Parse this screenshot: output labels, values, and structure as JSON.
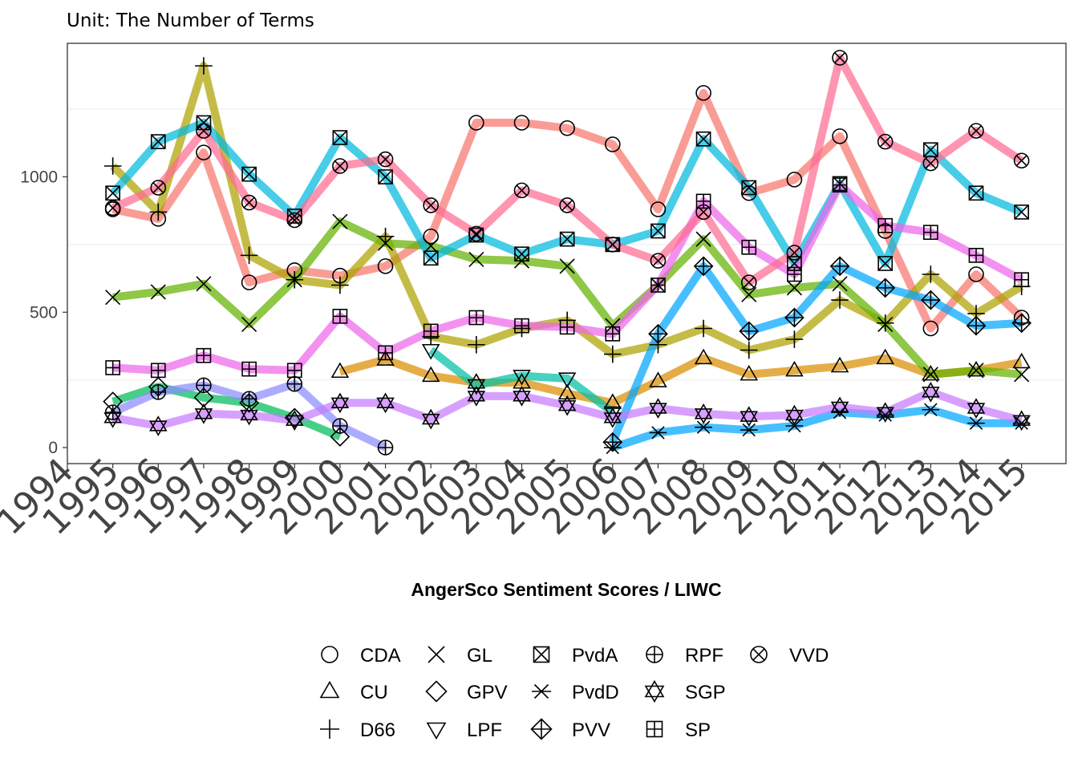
{
  "chart_data": {
    "type": "line",
    "title": "",
    "subtitle": "Unit: The Number of Terms",
    "xlabel": "AngerSco Sentiment Scores / LIWC",
    "ylabel": "",
    "xlim": [
      1994,
      2015
    ],
    "ylim": [
      -60,
      1480
    ],
    "x_ticks": [
      1994,
      1995,
      1996,
      1997,
      1998,
      1999,
      2000,
      2001,
      2002,
      2003,
      2004,
      2005,
      2006,
      2007,
      2008,
      2009,
      2010,
      2011,
      2012,
      2013,
      2014,
      2015
    ],
    "y_ticks": [
      0,
      500,
      1000
    ],
    "grid": true,
    "legend_position": "bottom",
    "series": [
      {
        "name": "CDA",
        "shape": "circle",
        "color": "#F8766D",
        "points": [
          [
            1995,
            880
          ],
          [
            1996,
            845
          ],
          [
            1997,
            1090
          ],
          [
            1998,
            610
          ],
          [
            1999,
            655
          ],
          [
            2000,
            635
          ],
          [
            2001,
            670
          ],
          [
            2002,
            780
          ],
          [
            2003,
            1200
          ],
          [
            2004,
            1200
          ],
          [
            2005,
            1180
          ],
          [
            2006,
            1120
          ],
          [
            2007,
            880
          ],
          [
            2008,
            1310
          ],
          [
            2009,
            940
          ],
          [
            2010,
            990
          ],
          [
            2011,
            1150
          ],
          [
            2012,
            800
          ],
          [
            2013,
            440
          ],
          [
            2014,
            640
          ],
          [
            2015,
            480
          ]
        ]
      },
      {
        "name": "CU",
        "shape": "triangle-up",
        "color": "#DB8E00",
        "points": [
          [
            2000,
            280
          ],
          [
            2001,
            325
          ],
          [
            2002,
            265
          ],
          [
            2003,
            240
          ],
          [
            2004,
            240
          ],
          [
            2005,
            200
          ],
          [
            2006,
            165
          ],
          [
            2007,
            245
          ],
          [
            2008,
            330
          ],
          [
            2009,
            270
          ],
          [
            2010,
            285
          ],
          [
            2011,
            300
          ],
          [
            2012,
            330
          ],
          [
            2013,
            270
          ],
          [
            2014,
            285
          ],
          [
            2015,
            315
          ]
        ]
      },
      {
        "name": "D66",
        "shape": "plus",
        "color": "#AEA200",
        "points": [
          [
            1995,
            1040
          ],
          [
            1996,
            870
          ],
          [
            1997,
            1410
          ],
          [
            1998,
            710
          ],
          [
            1999,
            620
          ],
          [
            2000,
            600
          ],
          [
            2001,
            780
          ],
          [
            2002,
            410
          ],
          [
            2003,
            380
          ],
          [
            2004,
            440
          ],
          [
            2005,
            470
          ],
          [
            2006,
            345
          ],
          [
            2007,
            380
          ],
          [
            2008,
            440
          ],
          [
            2009,
            360
          ],
          [
            2010,
            400
          ],
          [
            2011,
            545
          ],
          [
            2012,
            460
          ],
          [
            2013,
            640
          ],
          [
            2014,
            495
          ],
          [
            2015,
            595
          ]
        ]
      },
      {
        "name": "GL",
        "shape": "cross",
        "color": "#64B200",
        "points": [
          [
            1995,
            555
          ],
          [
            1996,
            575
          ],
          [
            1997,
            605
          ],
          [
            1998,
            455
          ],
          [
            1999,
            620
          ],
          [
            2000,
            835
          ],
          [
            2001,
            755
          ],
          [
            2002,
            745
          ],
          [
            2003,
            695
          ],
          [
            2004,
            690
          ],
          [
            2005,
            670
          ],
          [
            2006,
            450
          ],
          [
            2007,
            600
          ],
          [
            2008,
            770
          ],
          [
            2009,
            565
          ],
          [
            2010,
            590
          ],
          [
            2011,
            605
          ],
          [
            2012,
            455
          ],
          [
            2013,
            270
          ],
          [
            2014,
            285
          ],
          [
            2015,
            270
          ]
        ]
      },
      {
        "name": "GPV",
        "shape": "diamond",
        "color": "#00BD5C",
        "points": [
          [
            1995,
            170
          ],
          [
            1996,
            225
          ],
          [
            1997,
            185
          ],
          [
            1998,
            165
          ],
          [
            1999,
            110
          ],
          [
            2000,
            40
          ]
        ]
      },
      {
        "name": "LPF",
        "shape": "triangle-down",
        "color": "#00C1A7",
        "points": [
          [
            2002,
            360
          ],
          [
            2003,
            230
          ],
          [
            2004,
            265
          ],
          [
            2005,
            255
          ],
          [
            2006,
            130
          ]
        ]
      },
      {
        "name": "PvdA",
        "shape": "square-x",
        "color": "#00BADE",
        "points": [
          [
            1995,
            940
          ],
          [
            1996,
            1130
          ],
          [
            1997,
            1200
          ],
          [
            1998,
            1010
          ],
          [
            1999,
            855
          ],
          [
            2000,
            1145
          ],
          [
            2001,
            1000
          ],
          [
            2002,
            700
          ],
          [
            2003,
            785
          ],
          [
            2004,
            715
          ],
          [
            2005,
            770
          ],
          [
            2006,
            750
          ],
          [
            2007,
            800
          ],
          [
            2008,
            1140
          ],
          [
            2009,
            960
          ],
          [
            2010,
            680
          ],
          [
            2011,
            975
          ],
          [
            2012,
            680
          ],
          [
            2013,
            1100
          ],
          [
            2014,
            940
          ],
          [
            2015,
            870
          ]
        ]
      },
      {
        "name": "PvdD",
        "shape": "asterisk",
        "color": "#00A6FF",
        "points": [
          [
            2006,
            0
          ],
          [
            2007,
            55
          ],
          [
            2008,
            75
          ],
          [
            2009,
            65
          ],
          [
            2010,
            80
          ],
          [
            2011,
            130
          ],
          [
            2012,
            120
          ],
          [
            2013,
            140
          ],
          [
            2014,
            90
          ],
          [
            2015,
            90
          ]
        ]
      },
      {
        "name": "PVV",
        "shape": "diamond-plus",
        "color": "#00A6FF",
        "points": [
          [
            2006,
            20
          ],
          [
            2007,
            420
          ],
          [
            2008,
            670
          ],
          [
            2009,
            430
          ],
          [
            2010,
            480
          ],
          [
            2011,
            670
          ],
          [
            2012,
            590
          ],
          [
            2013,
            545
          ],
          [
            2014,
            450
          ],
          [
            2015,
            460
          ]
        ]
      },
      {
        "name": "RPF",
        "shape": "circle-plus",
        "color": "#8C8CFF",
        "points": [
          [
            1995,
            130
          ],
          [
            1996,
            205
          ],
          [
            1997,
            230
          ],
          [
            1998,
            180
          ],
          [
            1999,
            235
          ],
          [
            2000,
            80
          ],
          [
            2001,
            0
          ]
        ]
      },
      {
        "name": "SGP",
        "shape": "star-david",
        "color": "#C77CFF",
        "points": [
          [
            1995,
            110
          ],
          [
            1996,
            80
          ],
          [
            1997,
            125
          ],
          [
            1998,
            120
          ],
          [
            1999,
            100
          ],
          [
            2000,
            165
          ],
          [
            2001,
            165
          ],
          [
            2002,
            105
          ],
          [
            2003,
            190
          ],
          [
            2004,
            190
          ],
          [
            2005,
            155
          ],
          [
            2006,
            110
          ],
          [
            2007,
            145
          ],
          [
            2008,
            125
          ],
          [
            2009,
            115
          ],
          [
            2010,
            120
          ],
          [
            2011,
            150
          ],
          [
            2012,
            130
          ],
          [
            2013,
            205
          ],
          [
            2014,
            145
          ],
          [
            2015,
            100
          ]
        ]
      },
      {
        "name": "SP",
        "shape": "square-plus",
        "color": "#EF67EB",
        "points": [
          [
            1995,
            295
          ],
          [
            1996,
            285
          ],
          [
            1997,
            340
          ],
          [
            1998,
            290
          ],
          [
            1999,
            285
          ],
          [
            2000,
            485
          ],
          [
            2001,
            350
          ],
          [
            2002,
            430
          ],
          [
            2003,
            480
          ],
          [
            2004,
            450
          ],
          [
            2005,
            445
          ],
          [
            2006,
            420
          ],
          [
            2007,
            600
          ],
          [
            2008,
            910
          ],
          [
            2009,
            740
          ],
          [
            2010,
            640
          ],
          [
            2011,
            970
          ],
          [
            2012,
            820
          ],
          [
            2013,
            795
          ],
          [
            2014,
            710
          ],
          [
            2015,
            620
          ]
        ]
      },
      {
        "name": "VVD",
        "shape": "circle-x",
        "color": "#FF6C91",
        "points": [
          [
            1995,
            885
          ],
          [
            1996,
            960
          ],
          [
            1997,
            1170
          ],
          [
            1998,
            905
          ],
          [
            1999,
            840
          ],
          [
            2000,
            1040
          ],
          [
            2001,
            1065
          ],
          [
            2002,
            895
          ],
          [
            2003,
            790
          ],
          [
            2004,
            950
          ],
          [
            2005,
            895
          ],
          [
            2006,
            750
          ],
          [
            2007,
            690
          ],
          [
            2008,
            870
          ],
          [
            2009,
            610
          ],
          [
            2010,
            720
          ],
          [
            2011,
            1440
          ],
          [
            2012,
            1130
          ],
          [
            2013,
            1050
          ],
          [
            2014,
            1170
          ],
          [
            2015,
            1060
          ]
        ]
      }
    ]
  }
}
